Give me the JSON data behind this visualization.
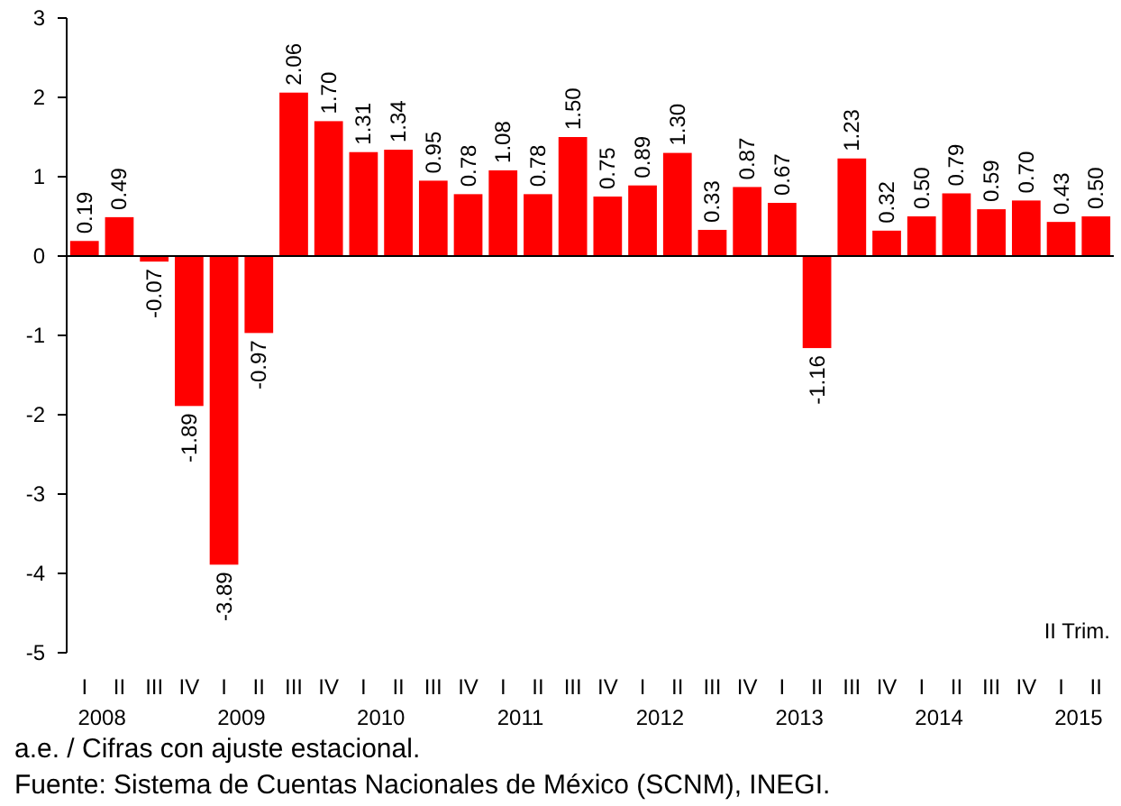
{
  "chart_data": {
    "type": "bar",
    "categories": [
      "I\n2008",
      "II",
      "III",
      "IV",
      "I\n2009",
      "II",
      "III",
      "IV",
      "I\n2010",
      "II",
      "III",
      "IV",
      "I\n2011",
      "II",
      "III",
      "IV",
      "I\n2012",
      "II",
      "III",
      "IV",
      "I\n2013",
      "II",
      "III",
      "IV",
      "I\n2014",
      "II",
      "III",
      "IV",
      "I\n2015",
      "II"
    ],
    "values": [
      0.19,
      0.49,
      -0.07,
      -1.89,
      -3.89,
      -0.97,
      2.06,
      1.7,
      1.31,
      1.34,
      0.95,
      0.78,
      1.08,
      0.78,
      1.5,
      0.75,
      0.89,
      1.3,
      0.33,
      0.87,
      0.67,
      -1.16,
      1.23,
      0.32,
      0.5,
      0.79,
      0.59,
      0.7,
      0.43,
      0.5
    ],
    "value_labels": [
      "0.19",
      "0.49",
      "-0.07",
      "-1.89",
      "-3.89",
      "-0.97",
      "2.06",
      "1.70",
      "1.31",
      "1.34",
      "0.95",
      "0.78",
      "1.08",
      "0.78",
      "1.50",
      "0.75",
      "0.89",
      "1.30",
      "0.33",
      "0.87",
      "0.67",
      "-1.16",
      "1.23",
      "0.32",
      "0.50",
      "0.79",
      "0.59",
      "0.70",
      "0.43",
      "0.50"
    ],
    "color": "#ff0000",
    "ylim": [
      -5,
      3
    ],
    "yticks": [
      -5,
      -4,
      -3,
      -2,
      -1,
      0,
      1,
      2,
      3
    ],
    "annotations": [
      "II Trim.",
      "a.e. / Cifras con ajuste estacional.",
      "Fuente: Sistema de Cuentas Nacionales de México (SCNM), INEGI."
    ]
  }
}
